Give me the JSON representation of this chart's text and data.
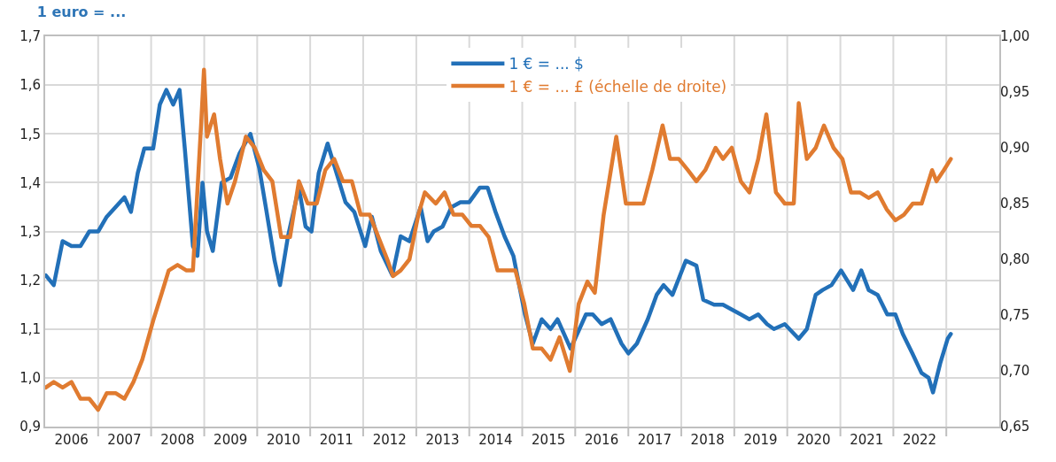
{
  "chart_data": {
    "type": "line",
    "title": "1 euro = ...",
    "xlim": [
      "2006-01-01",
      "2024-01-01"
    ],
    "xticks": [
      {
        "value": "2006-07-01",
        "label": "2006"
      },
      {
        "value": "2007-07-01",
        "label": "2007"
      },
      {
        "value": "2008-07-01",
        "label": "2008"
      },
      {
        "value": "2009-07-01",
        "label": "2009"
      },
      {
        "value": "2010-07-01",
        "label": "2010"
      },
      {
        "value": "2011-07-01",
        "label": "2011"
      },
      {
        "value": "2012-07-01",
        "label": "2012"
      },
      {
        "value": "2013-07-01",
        "label": "2013"
      },
      {
        "value": "2014-07-01",
        "label": "2014"
      },
      {
        "value": "2015-07-01",
        "label": "2015"
      },
      {
        "value": "2016-07-01",
        "label": "2016"
      },
      {
        "value": "2017-07-01",
        "label": "2017"
      },
      {
        "value": "2018-07-01",
        "label": "2018"
      },
      {
        "value": "2019-07-01",
        "label": "2019"
      },
      {
        "value": "2020-07-01",
        "label": "2020"
      },
      {
        "value": "2021-07-01",
        "label": "2021"
      },
      {
        "value": "2022-07-01",
        "label": "2022"
      },
      {
        "value": "2007-01-01",
        "label": null
      },
      {
        "value": "2008-01-01",
        "label": null
      },
      {
        "value": "2009-01-01",
        "label": null
      },
      {
        "value": "2010-01-01",
        "label": null
      },
      {
        "value": "2011-01-01",
        "label": null
      },
      {
        "value": "2012-01-01",
        "label": null
      },
      {
        "value": "2013-01-01",
        "label": null
      },
      {
        "value": "2014-01-01",
        "label": null
      },
      {
        "value": "2015-01-01",
        "label": null
      },
      {
        "value": "2016-01-01",
        "label": null
      },
      {
        "value": "2017-01-01",
        "label": null
      },
      {
        "value": "2018-01-01",
        "label": null
      },
      {
        "value": "2019-01-01",
        "label": null
      },
      {
        "value": "2020-01-01",
        "label": null
      },
      {
        "value": "2021-01-01",
        "label": null
      },
      {
        "value": "2022-01-01",
        "label": null
      },
      {
        "value": "2023-01-01",
        "label": null
      }
    ],
    "ylim": [
      0.9,
      1.7
    ],
    "yticks": [
      {
        "value": 0.9,
        "label": "0,9"
      },
      {
        "value": 1.0,
        "label": "1,0"
      },
      {
        "value": 1.1,
        "label": "1,1"
      },
      {
        "value": 1.2,
        "label": "1,2"
      },
      {
        "value": 1.3,
        "label": "1,3"
      },
      {
        "value": 1.4,
        "label": "1,4"
      },
      {
        "value": 1.5,
        "label": "1,5"
      },
      {
        "value": 1.6,
        "label": "1,6"
      },
      {
        "value": 1.7,
        "label": "1,7"
      }
    ],
    "y2lim": [
      0.65,
      1.0
    ],
    "y2ticks": [
      {
        "value": 0.65,
        "label": "0,65"
      },
      {
        "value": 0.7,
        "label": "0,70"
      },
      {
        "value": 0.75,
        "label": "0,75"
      },
      {
        "value": 0.8,
        "label": "0,80"
      },
      {
        "value": 0.85,
        "label": "0,85"
      },
      {
        "value": 0.9,
        "label": "0,90"
      },
      {
        "value": 0.95,
        "label": "0,95"
      },
      {
        "value": 1.0,
        "label": "1,00"
      }
    ],
    "grid": true,
    "legend": "top",
    "marker": "none",
    "line_style": "solid",
    "series": [
      {
        "name": "1 € = ... $",
        "color": "#2270b8",
        "x": [
          "2006-01-05",
          "2006-03-01",
          "2006-05-01",
          "2006-07-01",
          "2006-09-01",
          "2006-11-01",
          "2007-01-01",
          "2007-03-01",
          "2007-05-01",
          "2007-07-01",
          "2007-08-15",
          "2007-10-01",
          "2007-11-15",
          "2008-01-15",
          "2008-03-01",
          "2008-04-15",
          "2008-06-01",
          "2008-07-15",
          "2008-08-20",
          "2008-10-15",
          "2008-11-15",
          "2008-12-20",
          "2009-01-20",
          "2009-03-01",
          "2009-05-01",
          "2009-07-01",
          "2009-09-01",
          "2009-11-15",
          "2010-01-15",
          "2010-03-01",
          "2010-05-01",
          "2010-06-07",
          "2010-08-01",
          "2010-10-15",
          "2010-11-30",
          "2011-01-10",
          "2011-03-01",
          "2011-05-01",
          "2011-07-01",
          "2011-09-01",
          "2011-11-01",
          "2012-01-15",
          "2012-03-01",
          "2012-05-01",
          "2012-07-20",
          "2012-09-15",
          "2012-11-15",
          "2013-01-31",
          "2013-03-20",
          "2013-05-01",
          "2013-07-01",
          "2013-09-01",
          "2013-11-01",
          "2014-01-01",
          "2014-03-15",
          "2014-05-07",
          "2014-07-01",
          "2014-09-01",
          "2014-11-01",
          "2015-01-20",
          "2015-03-15",
          "2015-05-15",
          "2015-07-15",
          "2015-09-01",
          "2015-11-30",
          "2016-01-15",
          "2016-03-15",
          "2016-05-01",
          "2016-07-01",
          "2016-09-01",
          "2016-11-15",
          "2017-01-01",
          "2017-03-01",
          "2017-05-15",
          "2017-07-15",
          "2017-09-01",
          "2017-11-01",
          "2018-02-01",
          "2018-04-15",
          "2018-06-01",
          "2018-08-15",
          "2018-10-15",
          "2018-12-15",
          "2019-02-15",
          "2019-04-15",
          "2019-06-15",
          "2019-08-15",
          "2019-10-01",
          "2019-12-15",
          "2020-03-20",
          "2020-05-15",
          "2020-07-15",
          "2020-09-01",
          "2020-11-01",
          "2021-01-06",
          "2021-03-30",
          "2021-05-25",
          "2021-07-15",
          "2021-09-15",
          "2021-11-20",
          "2022-01-15",
          "2022-03-07",
          "2022-05-12",
          "2022-07-14",
          "2022-09-01",
          "2022-10-01",
          "2022-11-20",
          "2023-01-10",
          "2023-02-01"
        ],
        "values": [
          1.21,
          1.19,
          1.28,
          1.27,
          1.27,
          1.3,
          1.3,
          1.33,
          1.35,
          1.37,
          1.34,
          1.42,
          1.47,
          1.47,
          1.56,
          1.59,
          1.56,
          1.59,
          1.47,
          1.27,
          1.25,
          1.4,
          1.3,
          1.26,
          1.4,
          1.41,
          1.46,
          1.5,
          1.43,
          1.35,
          1.24,
          1.19,
          1.29,
          1.39,
          1.31,
          1.3,
          1.42,
          1.48,
          1.42,
          1.36,
          1.34,
          1.27,
          1.33,
          1.26,
          1.21,
          1.29,
          1.28,
          1.35,
          1.28,
          1.3,
          1.31,
          1.35,
          1.36,
          1.36,
          1.39,
          1.39,
          1.34,
          1.29,
          1.25,
          1.13,
          1.07,
          1.12,
          1.1,
          1.12,
          1.06,
          1.09,
          1.13,
          1.13,
          1.11,
          1.12,
          1.07,
          1.05,
          1.07,
          1.12,
          1.17,
          1.19,
          1.17,
          1.24,
          1.23,
          1.16,
          1.15,
          1.15,
          1.14,
          1.13,
          1.12,
          1.13,
          1.11,
          1.1,
          1.11,
          1.08,
          1.1,
          1.17,
          1.18,
          1.19,
          1.22,
          1.18,
          1.22,
          1.18,
          1.17,
          1.13,
          1.13,
          1.09,
          1.05,
          1.01,
          1.0,
          0.97,
          1.03,
          1.08,
          1.09
        ]
      },
      {
        "name": "1 € = ... £ (échelle de droite)",
        "color": "#e07b30",
        "axis": "y2",
        "x": [
          "2006-01-05",
          "2006-03-01",
          "2006-05-01",
          "2006-07-01",
          "2006-09-01",
          "2006-11-01",
          "2007-01-01",
          "2007-03-01",
          "2007-05-01",
          "2007-07-01",
          "2007-09-01",
          "2007-11-01",
          "2008-01-15",
          "2008-03-15",
          "2008-05-01",
          "2008-07-01",
          "2008-09-01",
          "2008-10-15",
          "2008-12-10",
          "2008-12-30",
          "2009-01-20",
          "2009-03-10",
          "2009-04-20",
          "2009-06-10",
          "2009-08-01",
          "2009-10-15",
          "2009-12-15",
          "2010-02-15",
          "2010-04-15",
          "2010-06-15",
          "2010-08-15",
          "2010-10-15",
          "2010-12-15",
          "2011-02-15",
          "2011-04-15",
          "2011-06-15",
          "2011-08-15",
          "2011-10-15",
          "2011-12-15",
          "2012-02-15",
          "2012-04-15",
          "2012-06-15",
          "2012-07-25",
          "2012-09-15",
          "2012-11-15",
          "2013-01-15",
          "2013-03-01",
          "2013-05-15",
          "2013-07-15",
          "2013-09-15",
          "2013-11-15",
          "2014-01-15",
          "2014-03-15",
          "2014-05-15",
          "2014-07-15",
          "2014-09-15",
          "2014-11-15",
          "2015-01-15",
          "2015-03-15",
          "2015-05-15",
          "2015-07-15",
          "2015-09-15",
          "2015-11-25",
          "2016-01-25",
          "2016-03-25",
          "2016-05-15",
          "2016-07-15",
          "2016-10-10",
          "2016-12-15",
          "2017-02-15",
          "2017-04-15",
          "2017-06-15",
          "2017-08-25",
          "2017-10-15",
          "2017-12-15",
          "2018-02-15",
          "2018-04-15",
          "2018-06-15",
          "2018-08-25",
          "2018-10-15",
          "2018-12-15",
          "2019-02-15",
          "2019-04-15",
          "2019-06-15",
          "2019-08-10",
          "2019-10-15",
          "2019-12-15",
          "2020-02-15",
          "2020-03-20",
          "2020-05-15",
          "2020-07-15",
          "2020-09-10",
          "2020-11-15",
          "2021-01-15",
          "2021-03-15",
          "2021-05-15",
          "2021-07-15",
          "2021-09-15",
          "2021-11-15",
          "2022-01-15",
          "2022-03-15",
          "2022-05-15",
          "2022-07-15",
          "2022-09-25",
          "2022-10-25",
          "2022-12-15",
          "2023-02-01"
        ],
        "values": [
          0.685,
          0.69,
          0.685,
          0.69,
          0.675,
          0.675,
          0.665,
          0.68,
          0.68,
          0.675,
          0.69,
          0.71,
          0.745,
          0.77,
          0.79,
          0.795,
          0.79,
          0.79,
          0.92,
          0.97,
          0.91,
          0.93,
          0.89,
          0.85,
          0.87,
          0.91,
          0.9,
          0.88,
          0.87,
          0.82,
          0.82,
          0.87,
          0.85,
          0.85,
          0.88,
          0.89,
          0.87,
          0.87,
          0.84,
          0.84,
          0.82,
          0.8,
          0.785,
          0.79,
          0.8,
          0.84,
          0.86,
          0.85,
          0.86,
          0.84,
          0.84,
          0.83,
          0.83,
          0.82,
          0.79,
          0.79,
          0.79,
          0.76,
          0.72,
          0.72,
          0.71,
          0.73,
          0.7,
          0.76,
          0.78,
          0.77,
          0.84,
          0.91,
          0.85,
          0.85,
          0.85,
          0.88,
          0.92,
          0.89,
          0.89,
          0.88,
          0.87,
          0.88,
          0.9,
          0.89,
          0.9,
          0.87,
          0.86,
          0.89,
          0.93,
          0.86,
          0.85,
          0.85,
          0.94,
          0.89,
          0.9,
          0.92,
          0.9,
          0.89,
          0.86,
          0.86,
          0.855,
          0.86,
          0.845,
          0.835,
          0.84,
          0.85,
          0.85,
          0.88,
          0.87,
          0.88,
          0.89
        ]
      }
    ]
  }
}
